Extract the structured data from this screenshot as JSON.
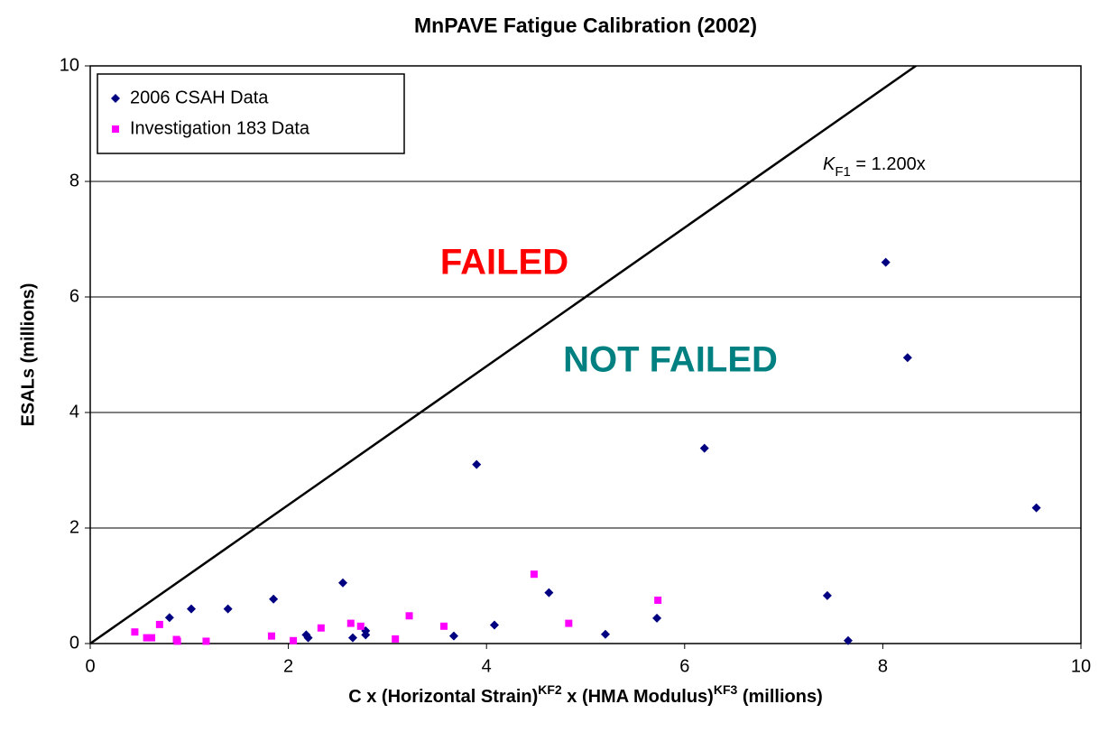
{
  "chart_data": {
    "type": "scatter",
    "title": "MnPAVE Fatigue Calibration (2002)",
    "x_label_parts": [
      "C x (Horizontal Strain)",
      "KF2",
      " x (HMA Modulus)",
      "KF3",
      "  (millions)"
    ],
    "y_label": "ESALs (millions)",
    "xlim": [
      0,
      10
    ],
    "xticks": [
      0,
      2,
      4,
      6,
      8,
      10
    ],
    "ylim": [
      0,
      10
    ],
    "yticks": [
      0,
      2,
      4,
      6,
      8,
      10
    ],
    "grid": true,
    "legend": "upper left",
    "annotations": [
      "FAILED",
      "NOT FAILED"
    ],
    "trendline": {
      "slope": 1.2,
      "label_var": "K",
      "label_sub": "F1",
      "label_rest": " = 1.200x"
    },
    "series": [
      {
        "name": "2006 CSAH Data",
        "color": "#000080",
        "marker": "diamond",
        "x": [
          0.8,
          1.02,
          1.39,
          1.85,
          2.18,
          2.2,
          2.55,
          2.65,
          2.78,
          2.78,
          3.67,
          3.9,
          4.08,
          4.63,
          5.2,
          5.72,
          6.2,
          7.44,
          7.65,
          8.03,
          8.25,
          9.55
        ],
        "values": [
          0.45,
          0.6,
          0.6,
          0.77,
          0.15,
          0.1,
          1.05,
          0.1,
          0.22,
          0.15,
          0.13,
          3.1,
          0.32,
          0.88,
          0.16,
          0.44,
          3.38,
          0.83,
          0.05,
          6.6,
          4.95,
          2.35
        ]
      },
      {
        "name": "Investigation 183 Data",
        "color": "#ff00ff",
        "marker": "square",
        "x": [
          0.45,
          0.57,
          0.62,
          0.7,
          0.87,
          0.88,
          1.17,
          1.83,
          2.05,
          2.33,
          2.63,
          2.73,
          3.08,
          3.22,
          3.57,
          4.48,
          4.83,
          5.73
        ],
        "values": [
          0.2,
          0.1,
          0.1,
          0.33,
          0.07,
          0.04,
          0.04,
          0.13,
          0.05,
          0.27,
          0.35,
          0.3,
          0.08,
          0.48,
          0.3,
          1.2,
          0.35,
          0.75
        ]
      }
    ]
  }
}
